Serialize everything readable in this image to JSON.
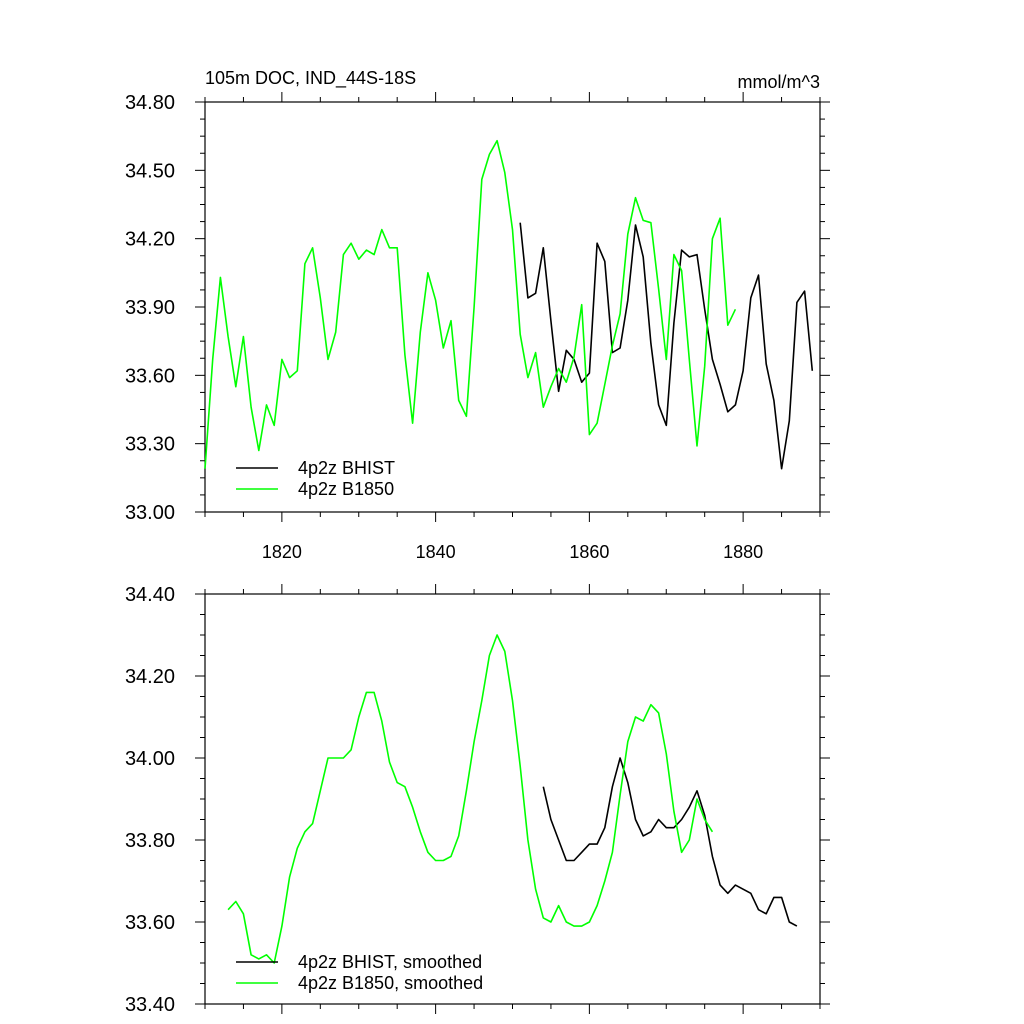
{
  "chart_data": [
    {
      "type": "line",
      "title": "105m DOC, IND_44S-18S",
      "units": "mmol/m^3",
      "xlim": [
        1810,
        1890
      ],
      "ylim": [
        33.0,
        34.8
      ],
      "x_ticks": [
        1820,
        1840,
        1860,
        1880
      ],
      "x_tick_labels": [
        "1820",
        "1840",
        "1860",
        "1880"
      ],
      "y_ticks": [
        33.0,
        33.3,
        33.6,
        33.9,
        34.2,
        34.5,
        34.8
      ],
      "y_tick_labels": [
        "33.00",
        "33.30",
        "33.60",
        "33.90",
        "34.20",
        "34.50",
        "34.80"
      ],
      "legend_position": "bottom-left",
      "series": [
        {
          "name": "4p2z BHIST",
          "color": "#000000",
          "x": [
            1851,
            1852,
            1853,
            1854,
            1855,
            1856,
            1857,
            1858,
            1859,
            1860,
            1861,
            1862,
            1863,
            1864,
            1865,
            1866,
            1867,
            1868,
            1869,
            1870,
            1871,
            1872,
            1873,
            1874,
            1875,
            1876,
            1877,
            1878,
            1879,
            1880,
            1881,
            1882,
            1883,
            1884,
            1885,
            1886,
            1887,
            1888,
            1889
          ],
          "y": [
            34.27,
            33.94,
            33.96,
            34.16,
            33.84,
            33.53,
            33.71,
            33.67,
            33.57,
            33.61,
            34.18,
            34.1,
            33.7,
            33.72,
            33.93,
            34.26,
            34.12,
            33.74,
            33.47,
            33.38,
            33.83,
            34.15,
            34.12,
            34.13,
            33.89,
            33.67,
            33.56,
            33.44,
            33.47,
            33.62,
            33.94,
            34.04,
            33.65,
            33.49,
            33.19,
            33.4,
            33.92,
            33.97,
            33.62
          ]
        },
        {
          "name": "4p2z B1850",
          "color": "#00ff00",
          "x": [
            1810,
            1811,
            1812,
            1813,
            1814,
            1815,
            1816,
            1817,
            1818,
            1819,
            1820,
            1821,
            1822,
            1823,
            1824,
            1825,
            1826,
            1827,
            1828,
            1829,
            1830,
            1831,
            1832,
            1833,
            1834,
            1835,
            1836,
            1837,
            1838,
            1839,
            1840,
            1841,
            1842,
            1843,
            1844,
            1845,
            1846,
            1847,
            1848,
            1849,
            1850,
            1851,
            1852,
            1853,
            1854,
            1855,
            1856,
            1857,
            1858,
            1859,
            1860,
            1861,
            1862,
            1863,
            1864,
            1865,
            1866,
            1867,
            1868,
            1869,
            1870,
            1871,
            1872,
            1873,
            1874,
            1875,
            1876,
            1877,
            1878,
            1879
          ],
          "y": [
            33.19,
            33.67,
            34.03,
            33.77,
            33.55,
            33.77,
            33.46,
            33.27,
            33.47,
            33.38,
            33.67,
            33.59,
            33.62,
            34.09,
            34.16,
            33.94,
            33.67,
            33.79,
            34.13,
            34.18,
            34.11,
            34.15,
            34.13,
            34.24,
            34.16,
            34.16,
            33.69,
            33.39,
            33.79,
            34.05,
            33.93,
            33.72,
            33.84,
            33.49,
            33.42,
            33.9,
            34.46,
            34.57,
            34.63,
            34.49,
            34.24,
            33.78,
            33.59,
            33.7,
            33.46,
            33.55,
            33.63,
            33.57,
            33.68,
            33.91,
            33.34,
            33.39,
            33.56,
            33.73,
            33.87,
            34.22,
            34.38,
            34.28,
            34.27,
            33.98,
            33.67,
            34.13,
            34.06,
            33.67,
            33.29,
            33.64,
            34.2,
            34.29,
            33.82,
            33.89
          ]
        }
      ]
    },
    {
      "type": "line",
      "title": "",
      "xlim": [
        1810,
        1890
      ],
      "ylim": [
        33.4,
        34.4
      ],
      "x_ticks": [
        1820,
        1840,
        1860,
        1880
      ],
      "x_tick_labels": [],
      "y_ticks": [
        33.4,
        33.6,
        33.8,
        34.0,
        34.2,
        34.4
      ],
      "y_tick_labels": [
        "33.40",
        "33.60",
        "33.80",
        "34.00",
        "34.20",
        "34.40"
      ],
      "legend_position": "bottom-left",
      "series": [
        {
          "name": "4p2z BHIST, smoothed",
          "color": "#000000",
          "x": [
            1854,
            1855,
            1856,
            1857,
            1858,
            1859,
            1860,
            1861,
            1862,
            1863,
            1864,
            1865,
            1866,
            1867,
            1868,
            1869,
            1870,
            1871,
            1872,
            1873,
            1874,
            1875,
            1876,
            1877,
            1878,
            1879,
            1880,
            1881,
            1882,
            1883,
            1884,
            1885,
            1886,
            1887
          ],
          "y": [
            33.93,
            33.85,
            33.8,
            33.75,
            33.75,
            33.77,
            33.79,
            33.79,
            33.83,
            33.93,
            34.0,
            33.94,
            33.85,
            33.81,
            33.82,
            33.85,
            33.83,
            33.83,
            33.85,
            33.88,
            33.92,
            33.86,
            33.76,
            33.69,
            33.67,
            33.69,
            33.68,
            33.67,
            33.63,
            33.62,
            33.66,
            33.66,
            33.6,
            33.59
          ]
        },
        {
          "name": "4p2z B1850, smoothed",
          "color": "#00ff00",
          "x": [
            1813,
            1814,
            1815,
            1816,
            1817,
            1818,
            1819,
            1820,
            1821,
            1822,
            1823,
            1824,
            1825,
            1826,
            1827,
            1828,
            1829,
            1830,
            1831,
            1832,
            1833,
            1834,
            1835,
            1836,
            1837,
            1838,
            1839,
            1840,
            1841,
            1842,
            1843,
            1844,
            1845,
            1846,
            1847,
            1848,
            1849,
            1850,
            1851,
            1852,
            1853,
            1854,
            1855,
            1856,
            1857,
            1858,
            1859,
            1860,
            1861,
            1862,
            1863,
            1864,
            1865,
            1866,
            1867,
            1868,
            1869,
            1870,
            1871,
            1872,
            1873,
            1874,
            1875,
            1876
          ],
          "y": [
            33.63,
            33.65,
            33.62,
            33.52,
            33.51,
            33.52,
            33.5,
            33.59,
            33.71,
            33.78,
            33.82,
            33.84,
            33.92,
            34.0,
            34.0,
            34.0,
            34.02,
            34.1,
            34.16,
            34.16,
            34.09,
            33.99,
            33.94,
            33.93,
            33.88,
            33.82,
            33.77,
            33.75,
            33.75,
            33.76,
            33.81,
            33.92,
            34.04,
            34.14,
            34.25,
            34.3,
            34.26,
            34.14,
            33.98,
            33.8,
            33.68,
            33.61,
            33.6,
            33.64,
            33.6,
            33.59,
            33.59,
            33.6,
            33.64,
            33.7,
            33.77,
            33.91,
            34.04,
            34.1,
            34.09,
            34.13,
            34.11,
            34.01,
            33.87,
            33.77,
            33.8,
            33.9,
            33.85,
            33.82
          ]
        }
      ]
    }
  ]
}
